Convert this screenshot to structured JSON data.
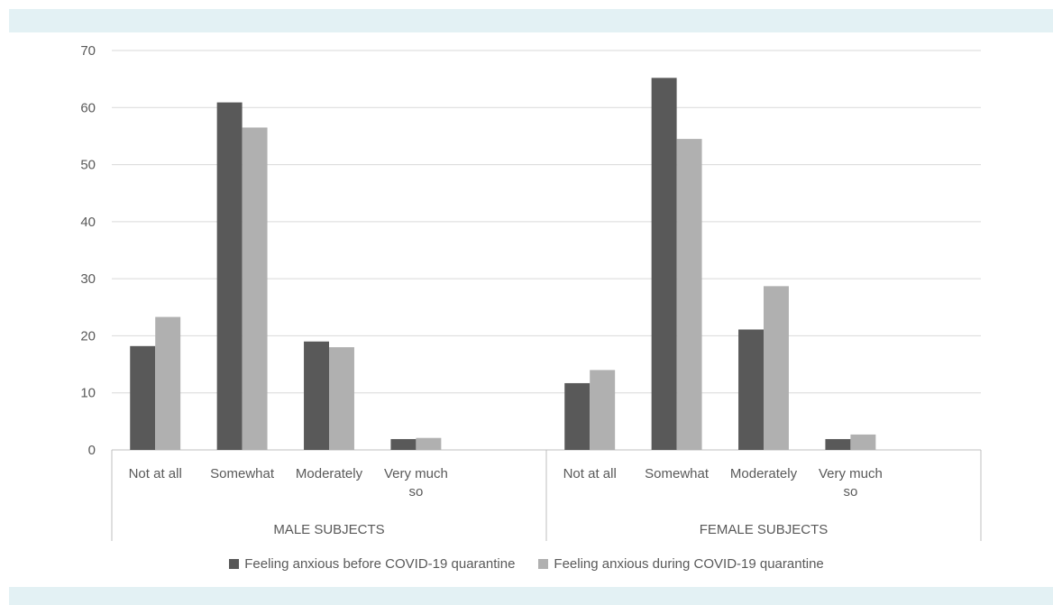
{
  "chart_data": {
    "type": "bar",
    "groups": [
      {
        "name": "MALE SUBJECTS",
        "categories": [
          "Not at all",
          "Somewhat",
          "Moderately",
          "Very much so"
        ],
        "series": [
          {
            "name": "Feeling anxious before COVID-19 quarantine",
            "values": [
              18.2,
              60.9,
              19.0,
              1.9
            ]
          },
          {
            "name": "Feeling anxious during COVID-19 quarantine",
            "values": [
              23.3,
              56.5,
              18.0,
              2.1
            ]
          }
        ]
      },
      {
        "name": "FEMALE SUBJECTS",
        "categories": [
          "Not at all",
          "Somewhat",
          "Moderately",
          "Very much so"
        ],
        "series": [
          {
            "name": "Feeling anxious before COVID-19 quarantine",
            "values": [
              11.7,
              65.2,
              21.1,
              1.9
            ]
          },
          {
            "name": "Feeling anxious during COVID-19 quarantine",
            "values": [
              14.0,
              54.5,
              28.7,
              2.7
            ]
          }
        ]
      }
    ],
    "legend": [
      {
        "name": "Feeling anxious before COVID-19 quarantine",
        "color": "#595959"
      },
      {
        "name": "Feeling anxious during COVID-19 quarantine",
        "color": "#b0b0b0"
      }
    ],
    "yticks": [
      "0",
      "10",
      "20",
      "30",
      "40",
      "50",
      "60",
      "70"
    ],
    "ylim": [
      0,
      70
    ],
    "grid": true,
    "legend_position": "bottom"
  }
}
